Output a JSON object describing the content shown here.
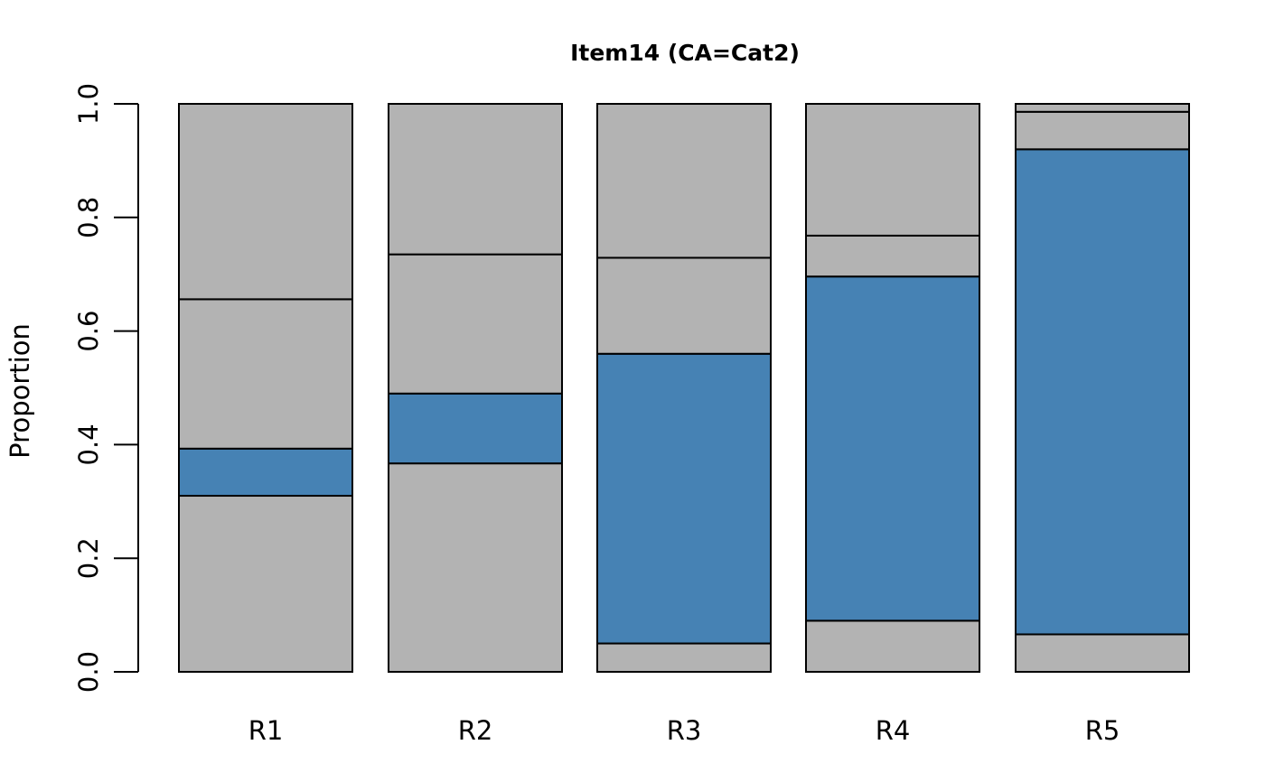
{
  "chart_data": {
    "type": "bar",
    "stacked": true,
    "title": "Item14 (CA=Cat2)",
    "xlabel": "",
    "ylabel": "Proportion",
    "ylim": [
      0,
      1
    ],
    "yticks": [
      "0.0",
      "0.2",
      "0.4",
      "0.6",
      "0.8",
      "1.0"
    ],
    "categories": [
      "R1",
      "R2",
      "R3",
      "R4",
      "R5"
    ],
    "colors": {
      "highlight": "#4682b4",
      "other": "#b3b3b3"
    },
    "series": [
      {
        "values": [
          0.31,
          0.367,
          0.05,
          0.09,
          0.066
        ],
        "highlight": false
      },
      {
        "values": [
          0.083,
          0.123,
          0.51,
          0.606,
          0.854
        ],
        "highlight": true
      },
      {
        "values": [
          0.263,
          0.245,
          0.169,
          0.072,
          0.066
        ],
        "highlight": false
      },
      {
        "values": [
          0.344,
          0.265,
          0.271,
          0.232,
          0.014
        ],
        "highlight": false
      }
    ]
  }
}
